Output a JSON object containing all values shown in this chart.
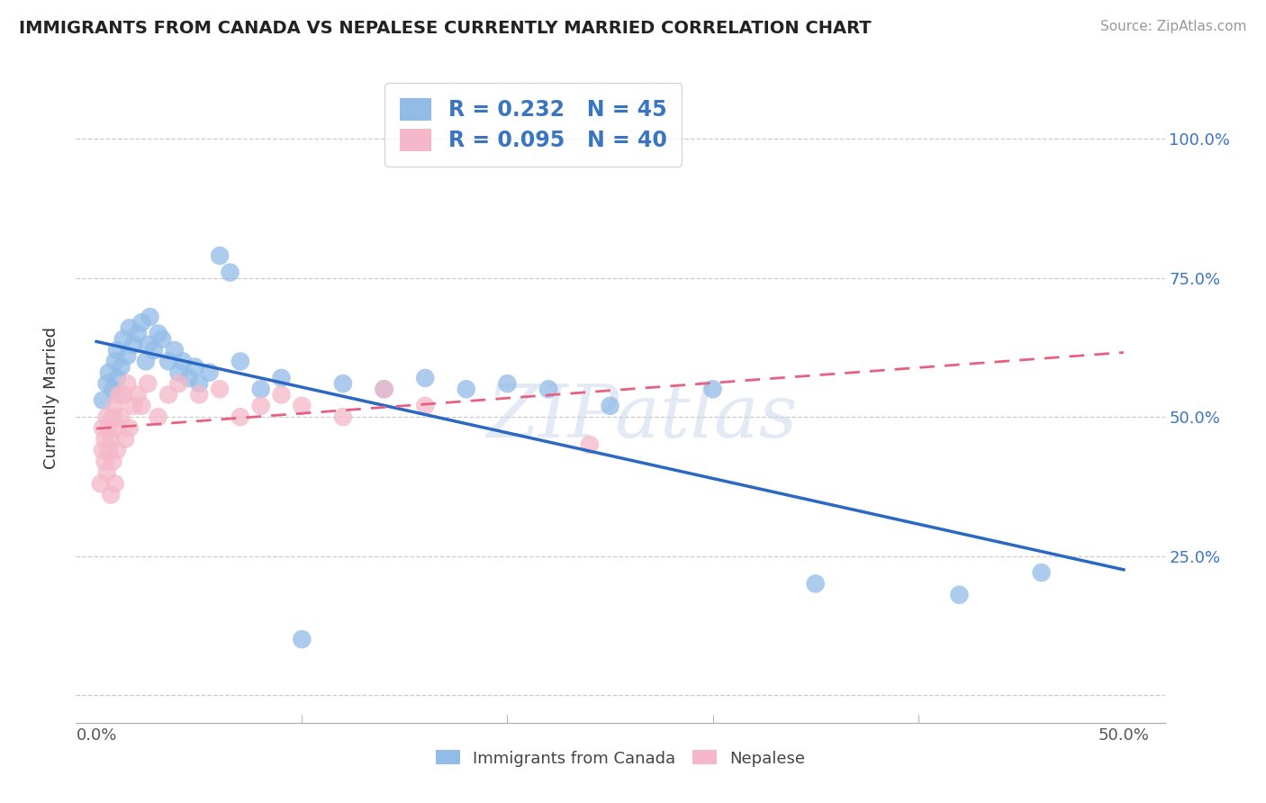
{
  "title": "IMMIGRANTS FROM CANADA VS NEPALESE CURRENTLY MARRIED CORRELATION CHART",
  "source": "Source: ZipAtlas.com",
  "ylabel_label": "Currently Married",
  "x_tick_vals": [
    0.0,
    0.1,
    0.2,
    0.3,
    0.4,
    0.5
  ],
  "x_tick_labels": [
    "0.0%",
    "",
    "",
    "",
    "",
    "50.0%"
  ],
  "y_tick_vals": [
    0.0,
    0.25,
    0.5,
    0.75,
    1.0
  ],
  "y_tick_labels_right": [
    "",
    "25.0%",
    "50.0%",
    "75.0%",
    "100.0%"
  ],
  "xlim": [
    -0.01,
    0.52
  ],
  "ylim": [
    -0.05,
    1.12
  ],
  "legend_label1": "Immigrants from Canada",
  "legend_label2": "Nepalese",
  "r1": 0.232,
  "n1": 45,
  "r2": 0.095,
  "n2": 40,
  "blue_color": "#92bce8",
  "pink_color": "#f4b8ca",
  "blue_line_color": "#2a68c4",
  "pink_line_color": "#e86080",
  "watermark": "ZIPatlas",
  "blue_x": [
    0.003,
    0.005,
    0.006,
    0.008,
    0.009,
    0.01,
    0.01,
    0.012,
    0.013,
    0.015,
    0.016,
    0.018,
    0.02,
    0.022,
    0.024,
    0.025,
    0.026,
    0.028,
    0.03,
    0.032,
    0.035,
    0.038,
    0.04,
    0.042,
    0.045,
    0.048,
    0.05,
    0.055,
    0.06,
    0.065,
    0.07,
    0.08,
    0.09,
    0.1,
    0.12,
    0.14,
    0.16,
    0.18,
    0.2,
    0.22,
    0.25,
    0.3,
    0.35,
    0.42,
    0.46
  ],
  "blue_y": [
    0.53,
    0.56,
    0.58,
    0.55,
    0.6,
    0.57,
    0.62,
    0.59,
    0.64,
    0.61,
    0.66,
    0.63,
    0.65,
    0.67,
    0.6,
    0.63,
    0.68,
    0.62,
    0.65,
    0.64,
    0.6,
    0.62,
    0.58,
    0.6,
    0.57,
    0.59,
    0.56,
    0.58,
    0.79,
    0.76,
    0.6,
    0.55,
    0.57,
    0.1,
    0.56,
    0.55,
    0.57,
    0.55,
    0.56,
    0.55,
    0.52,
    0.55,
    0.2,
    0.18,
    0.22
  ],
  "pink_x": [
    0.002,
    0.003,
    0.003,
    0.004,
    0.004,
    0.005,
    0.005,
    0.006,
    0.006,
    0.007,
    0.007,
    0.008,
    0.008,
    0.009,
    0.009,
    0.01,
    0.01,
    0.011,
    0.012,
    0.013,
    0.014,
    0.015,
    0.016,
    0.018,
    0.02,
    0.022,
    0.025,
    0.03,
    0.035,
    0.04,
    0.05,
    0.06,
    0.07,
    0.08,
    0.09,
    0.1,
    0.12,
    0.14,
    0.16,
    0.24
  ],
  "pink_y": [
    0.38,
    0.44,
    0.48,
    0.42,
    0.46,
    0.4,
    0.5,
    0.44,
    0.48,
    0.36,
    0.46,
    0.42,
    0.5,
    0.38,
    0.52,
    0.44,
    0.48,
    0.54,
    0.5,
    0.54,
    0.46,
    0.56,
    0.48,
    0.52,
    0.54,
    0.52,
    0.56,
    0.5,
    0.54,
    0.56,
    0.54,
    0.55,
    0.5,
    0.52,
    0.54,
    0.52,
    0.5,
    0.55,
    0.52,
    0.45
  ]
}
